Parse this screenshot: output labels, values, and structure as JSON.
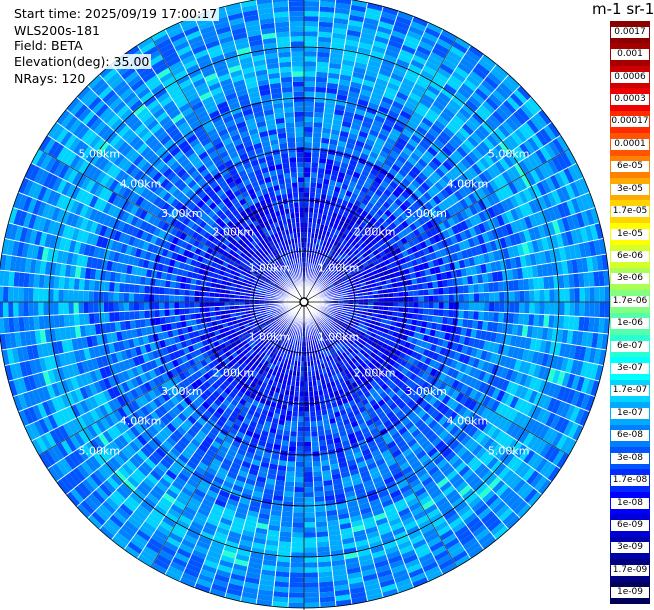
{
  "plot": {
    "start_time": "Start time: 2025/09/19 17:00:17",
    "instrument": "WLS200s-181",
    "field": "Field: BETA",
    "elevation": "Elevation(deg): 35.00",
    "nrays": "NRays: 120"
  },
  "range_labels": [
    "1.00km",
    "2.00km",
    "3.00km",
    "4.00km",
    "5.00km"
  ],
  "colorbar": {
    "title": "m-1 sr-1",
    "labels": [
      "0.0017",
      "0.001",
      "0.0006",
      "0.0003",
      "0.00017",
      "0.0001",
      "6e-05",
      "3e-05",
      "1.7e-05",
      "1e-05",
      "6e-06",
      "3e-06",
      "1.7e-06",
      "1e-06",
      "6e-07",
      "3e-07",
      "1.7e-07",
      "1e-07",
      "6e-08",
      "3e-08",
      "1.7e-08",
      "1e-08",
      "6e-09",
      "3e-09",
      "1.7e-09",
      "1e-09"
    ],
    "colors": [
      "#8b0000",
      "#a50000",
      "#cc0000",
      "#ee0000",
      "#ff2a00",
      "#ff5500",
      "#ff8000",
      "#ffaa00",
      "#ffd400",
      "#ffff00",
      "#d4ff2a",
      "#aaff55",
      "#80ff80",
      "#55ffaa",
      "#2affd4",
      "#00ffff",
      "#00d4ff",
      "#00aaff",
      "#0080ff",
      "#0055ff",
      "#002aff",
      "#0000ff",
      "#0000d4",
      "#0000aa",
      "#000080",
      "#00005a"
    ]
  },
  "colors": {
    "background": "#ffffff",
    "rings": "#000000",
    "ray_separators": "#ffffff"
  }
}
